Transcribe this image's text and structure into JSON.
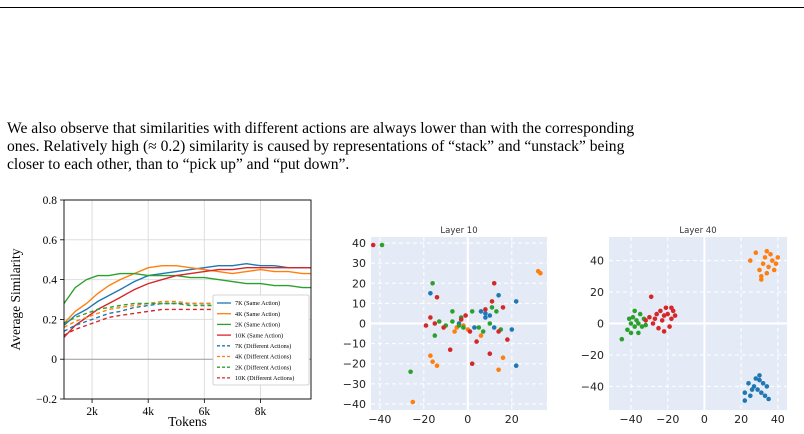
{
  "paragraph": {
    "line1": "We also observe that similarities with different actions are always lower than with the corresponding",
    "line2": "ones. Relatively high (≈ 0.2) similarity is caused by representations of “stack” and “unstack” being",
    "line3": "closer to each other, than to “pick up” and “put down”."
  },
  "colors": {
    "blue": "#1f77b4",
    "orange": "#ff7f0e",
    "green": "#2ca02c",
    "red": "#d62728",
    "scatter_bg": "#e5ebf6"
  },
  "chart_data": [
    {
      "type": "line",
      "xlabel": "Tokens",
      "ylabel": "Average Similarity",
      "xlim": [
        1000,
        9800
      ],
      "ylim": [
        -0.2,
        0.8
      ],
      "xticks": [
        {
          "v": 2000,
          "label": "2k"
        },
        {
          "v": 4000,
          "label": "4k"
        },
        {
          "v": 6000,
          "label": "6k"
        },
        {
          "v": 8000,
          "label": "8k"
        }
      ],
      "yticks": [
        {
          "v": -0.2,
          "label": "−0.2"
        },
        {
          "v": 0,
          "label": "0"
        },
        {
          "v": 0.2,
          "label": "0.2"
        },
        {
          "v": 0.4,
          "label": "0.4"
        },
        {
          "v": 0.6,
          "label": "0.6"
        },
        {
          "v": 0.8,
          "label": "0.8"
        }
      ],
      "grid": true,
      "legend_position": "lower-right",
      "x": [
        1000,
        1400,
        1800,
        2200,
        2600,
        3000,
        3500,
        4000,
        4500,
        5000,
        5500,
        6000,
        6500,
        7000,
        7500,
        8000,
        8500,
        9000,
        9500,
        9800
      ],
      "series": [
        {
          "name": "7K (Same Action)",
          "color": "blue",
          "dashed": false,
          "values": [
            0.17,
            0.22,
            0.25,
            0.29,
            0.32,
            0.35,
            0.39,
            0.42,
            0.43,
            0.44,
            0.45,
            0.46,
            0.47,
            0.47,
            0.48,
            0.47,
            0.47,
            0.46,
            0.46,
            0.46
          ]
        },
        {
          "name": "4K (Same Action)",
          "color": "orange",
          "dashed": false,
          "values": [
            0.18,
            0.24,
            0.28,
            0.33,
            0.37,
            0.4,
            0.43,
            0.46,
            0.47,
            0.47,
            0.46,
            0.45,
            0.44,
            0.43,
            0.44,
            0.45,
            0.44,
            0.44,
            0.43,
            0.43
          ]
        },
        {
          "name": "2K (Same Action)",
          "color": "green",
          "dashed": false,
          "values": [
            0.28,
            0.36,
            0.4,
            0.42,
            0.42,
            0.43,
            0.43,
            0.42,
            0.42,
            0.42,
            0.41,
            0.41,
            0.4,
            0.39,
            0.38,
            0.38,
            0.37,
            0.37,
            0.36,
            0.36
          ]
        },
        {
          "name": "10K (Same Action)",
          "color": "red",
          "dashed": false,
          "values": [
            0.11,
            0.17,
            0.21,
            0.25,
            0.28,
            0.31,
            0.35,
            0.38,
            0.4,
            0.42,
            0.43,
            0.44,
            0.45,
            0.45,
            0.46,
            0.46,
            0.46,
            0.46,
            0.46,
            0.46
          ]
        },
        {
          "name": "7K (Different Actions)",
          "color": "blue",
          "dashed": true,
          "values": [
            0.14,
            0.17,
            0.19,
            0.21,
            0.23,
            0.24,
            0.26,
            0.27,
            0.28,
            0.28,
            0.28,
            0.28,
            0.28,
            0.28,
            0.27,
            0.27,
            0.27,
            0.26,
            0.26,
            0.26
          ]
        },
        {
          "name": "4K (Different Actions)",
          "color": "orange",
          "dashed": true,
          "values": [
            0.16,
            0.19,
            0.21,
            0.23,
            0.25,
            0.26,
            0.27,
            0.28,
            0.29,
            0.29,
            0.28,
            0.28,
            0.28,
            0.27,
            0.27,
            0.27,
            0.26,
            0.26,
            0.26,
            0.26
          ]
        },
        {
          "name": "2K (Different Actions)",
          "color": "green",
          "dashed": true,
          "values": [
            0.18,
            0.21,
            0.23,
            0.25,
            0.26,
            0.27,
            0.28,
            0.28,
            0.28,
            0.28,
            0.27,
            0.27,
            0.27,
            0.26,
            0.26,
            0.26,
            0.25,
            0.25,
            0.25,
            0.25
          ]
        },
        {
          "name": "10K (Different Actions)",
          "color": "red",
          "dashed": true,
          "values": [
            0.12,
            0.15,
            0.17,
            0.19,
            0.21,
            0.22,
            0.23,
            0.24,
            0.25,
            0.25,
            0.25,
            0.25,
            0.25,
            0.25,
            0.25,
            0.25,
            0.24,
            0.24,
            0.24,
            0.24
          ]
        }
      ]
    },
    {
      "type": "scatter",
      "title": "Layer 10",
      "xlim": [
        -44,
        36
      ],
      "ylim": [
        -43,
        43
      ],
      "xticks": [
        {
          "v": -40,
          "label": "−40"
        },
        {
          "v": -20,
          "label": "−20"
        },
        {
          "v": 0,
          "label": "0"
        },
        {
          "v": 20,
          "label": "20"
        }
      ],
      "yticks": [
        {
          "v": 40,
          "label": "40"
        },
        {
          "v": 30,
          "label": "30"
        },
        {
          "v": 20,
          "label": "20"
        },
        {
          "v": 10,
          "label": "10"
        },
        {
          "v": 0,
          "label": "0"
        },
        {
          "v": -10,
          "label": "−10"
        },
        {
          "v": -20,
          "label": "−20"
        },
        {
          "v": -30,
          "label": "−30"
        },
        {
          "v": -40,
          "label": "−40"
        }
      ],
      "series": [
        {
          "color": "blue",
          "points": [
            [
              -17,
              15
            ],
            [
              3,
              -2
            ],
            [
              6,
              6
            ],
            [
              8,
              5
            ],
            [
              10,
              4
            ],
            [
              14,
              14
            ],
            [
              12,
              -2
            ],
            [
              20,
              -3
            ],
            [
              22,
              11
            ],
            [
              22,
              -21
            ],
            [
              8,
              3
            ],
            [
              -4,
              0
            ]
          ]
        },
        {
          "color": "orange",
          "points": [
            [
              -25,
              -39
            ],
            [
              -17,
              -16
            ],
            [
              -16,
              -19
            ],
            [
              -14,
              -21
            ],
            [
              -6,
              -4
            ],
            [
              -5,
              -2
            ],
            [
              -2,
              -1
            ],
            [
              0,
              -3
            ],
            [
              6,
              -6
            ],
            [
              14,
              -23
            ],
            [
              16,
              -17
            ],
            [
              32,
              26
            ],
            [
              33,
              25
            ]
          ]
        },
        {
          "color": "green",
          "points": [
            [
              -39,
              39
            ],
            [
              -26,
              -24
            ],
            [
              -16,
              20
            ],
            [
              -15,
              -6
            ],
            [
              -13,
              1
            ],
            [
              -10,
              -1
            ],
            [
              -7,
              6
            ],
            [
              -7,
              1
            ],
            [
              -4,
              -1
            ],
            [
              -2,
              -2
            ],
            [
              2,
              6
            ],
            [
              5,
              -2
            ],
            [
              7,
              -4
            ],
            [
              10,
              0
            ],
            [
              11,
              8
            ],
            [
              13,
              6
            ],
            [
              15,
              -3
            ],
            [
              -3,
              3
            ]
          ]
        },
        {
          "color": "red",
          "points": [
            [
              -43,
              39
            ],
            [
              -17,
              3
            ],
            [
              -15,
              0
            ],
            [
              -14,
              13
            ],
            [
              -11,
              -2
            ],
            [
              -8,
              -13
            ],
            [
              -3,
              2
            ],
            [
              -1,
              4
            ],
            [
              1,
              -4
            ],
            [
              2,
              -20
            ],
            [
              4,
              -9
            ],
            [
              8,
              7
            ],
            [
              10,
              -15
            ],
            [
              11,
              11
            ],
            [
              12,
              20
            ],
            [
              14,
              -4
            ],
            [
              16,
              8
            ],
            [
              18,
              -8
            ],
            [
              -19,
              -1
            ]
          ]
        }
      ]
    },
    {
      "type": "scatter",
      "title": "Layer 40",
      "xlim": [
        -52,
        45
      ],
      "ylim": [
        -55,
        55
      ],
      "xticks": [
        {
          "v": -40,
          "label": "−40"
        },
        {
          "v": -20,
          "label": "−20"
        },
        {
          "v": 0,
          "label": "0"
        },
        {
          "v": 20,
          "label": "20"
        },
        {
          "v": 40,
          "label": "40"
        }
      ],
      "yticks": [
        {
          "v": 40,
          "label": "40"
        },
        {
          "v": 20,
          "label": "20"
        },
        {
          "v": 0,
          "label": "0"
        },
        {
          "v": -20,
          "label": "−20"
        },
        {
          "v": -40,
          "label": "−40"
        }
      ],
      "series": [
        {
          "color": "blue",
          "points": [
            [
              22,
              -44
            ],
            [
              24,
              -38
            ],
            [
              25,
              -46
            ],
            [
              27,
              -40
            ],
            [
              28,
              -35
            ],
            [
              29,
              -42
            ],
            [
              30,
              -36
            ],
            [
              31,
              -44
            ],
            [
              32,
              -38
            ],
            [
              33,
              -46
            ],
            [
              34,
              -40
            ],
            [
              22,
              -49
            ],
            [
              35,
              -48
            ],
            [
              30,
              -33
            ],
            [
              26,
              -42
            ]
          ]
        },
        {
          "color": "orange",
          "points": [
            [
              25,
              40
            ],
            [
              28,
              45
            ],
            [
              30,
              34
            ],
            [
              31,
              30
            ],
            [
              32,
              38
            ],
            [
              33,
              42
            ],
            [
              34,
              32
            ],
            [
              35,
              36
            ],
            [
              36,
              44
            ],
            [
              37,
              40
            ],
            [
              38,
              34
            ],
            [
              39,
              38
            ],
            [
              40,
              42
            ],
            [
              31,
              28
            ],
            [
              34,
              46
            ]
          ]
        },
        {
          "color": "green",
          "points": [
            [
              -45,
              -10
            ],
            [
              -42,
              -4
            ],
            [
              -40,
              0
            ],
            [
              -39,
              4
            ],
            [
              -38,
              -2
            ],
            [
              -37,
              2
            ],
            [
              -36,
              -6
            ],
            [
              -35,
              6
            ],
            [
              -34,
              -2
            ],
            [
              -33,
              3
            ],
            [
              -38,
              8
            ],
            [
              -40,
              -6
            ],
            [
              -36,
              0
            ],
            [
              -32,
              -1
            ],
            [
              -41,
              3
            ]
          ]
        },
        {
          "color": "red",
          "points": [
            [
              -32,
              2
            ],
            [
              -30,
              4
            ],
            [
              -28,
              0
            ],
            [
              -26,
              6
            ],
            [
              -25,
              -3
            ],
            [
              -24,
              8
            ],
            [
              -23,
              2
            ],
            [
              -22,
              5
            ],
            [
              -21,
              10
            ],
            [
              -20,
              6
            ],
            [
              -19,
              -2
            ],
            [
              -18,
              3
            ],
            [
              -17,
              8
            ],
            [
              -29,
              17
            ],
            [
              -22,
              -5
            ],
            [
              -27,
              3
            ],
            [
              -16,
              5
            ],
            [
              -18,
              10
            ]
          ]
        }
      ]
    }
  ]
}
